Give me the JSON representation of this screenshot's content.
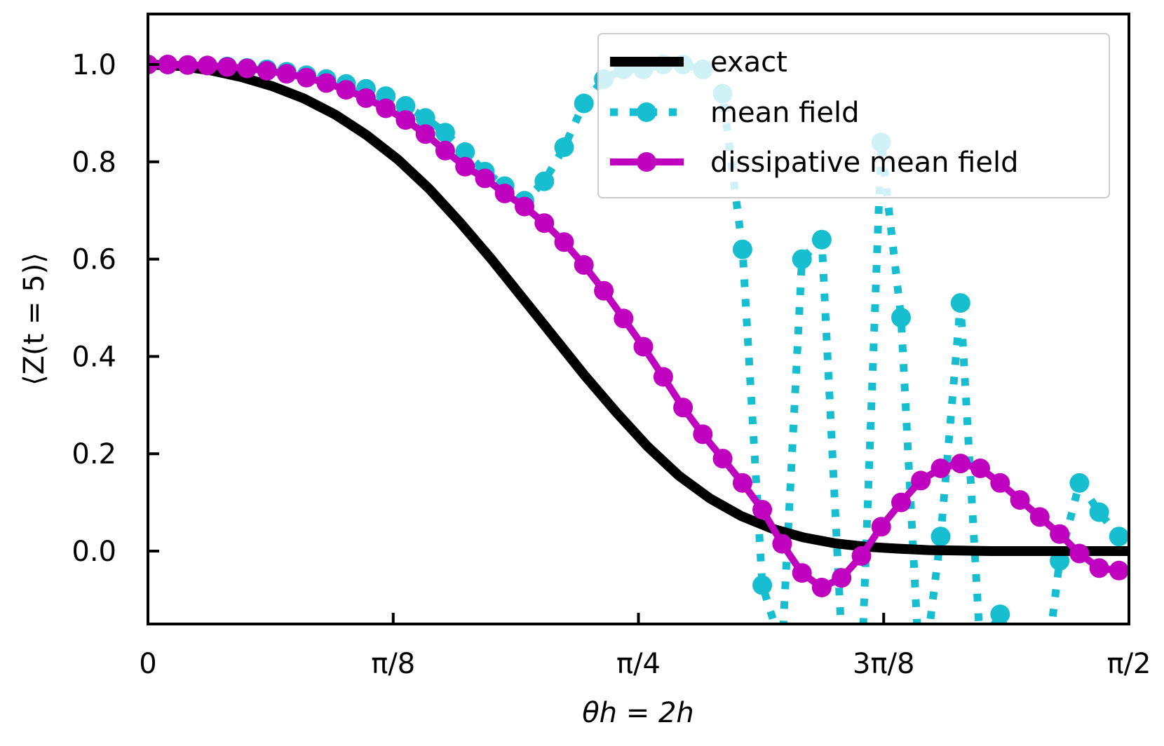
{
  "chart_data": {
    "type": "line",
    "xlabel": "θh = 2h",
    "ylabel": "⟨Z(t = 5)⟩",
    "xlim": [
      0,
      1.5708
    ],
    "ylim": [
      -0.15,
      1.1
    ],
    "x_ticks": [
      {
        "value": 0,
        "label": "0"
      },
      {
        "value": 0.3927,
        "label": "π/8"
      },
      {
        "value": 0.7854,
        "label": "π/4"
      },
      {
        "value": 1.1781,
        "label": "3π/8"
      },
      {
        "value": 1.5708,
        "label": "π/2"
      }
    ],
    "y_ticks": [
      {
        "value": 0.0,
        "label": "0.0"
      },
      {
        "value": 0.2,
        "label": "0.2"
      },
      {
        "value": 0.4,
        "label": "0.4"
      },
      {
        "value": 0.6,
        "label": "0.6"
      },
      {
        "value": 0.8,
        "label": "0.8"
      },
      {
        "value": 1.0,
        "label": "1.0"
      }
    ],
    "legend_position": "top-right",
    "series": [
      {
        "name": "exact",
        "style": "solid",
        "marker": "none",
        "color": "#000000",
        "x": [
          0,
          0.05,
          0.1,
          0.15,
          0.2,
          0.25,
          0.3,
          0.35,
          0.4,
          0.45,
          0.5,
          0.55,
          0.6,
          0.65,
          0.7,
          0.75,
          0.8,
          0.85,
          0.9,
          0.95,
          1.0,
          1.05,
          1.1,
          1.15,
          1.2,
          1.25,
          1.3,
          1.35,
          1.4,
          1.45,
          1.5,
          1.5708
        ],
        "values": [
          1.0,
          0.997,
          0.988,
          0.974,
          0.955,
          0.93,
          0.897,
          0.855,
          0.805,
          0.745,
          0.675,
          0.6,
          0.52,
          0.44,
          0.36,
          0.285,
          0.215,
          0.155,
          0.108,
          0.072,
          0.046,
          0.028,
          0.016,
          0.009,
          0.005,
          0.002,
          0.001,
          0.0,
          0.0,
          0.0,
          0.0,
          0.0
        ]
      },
      {
        "name": "mean field",
        "style": "dotted",
        "marker": "circle",
        "color": "#17becf",
        "x": [
          0,
          0.0317,
          0.0635,
          0.0952,
          0.1269,
          0.1587,
          0.1904,
          0.2221,
          0.2539,
          0.2856,
          0.3173,
          0.3491,
          0.3808,
          0.4125,
          0.4443,
          0.476,
          0.5077,
          0.5395,
          0.5712,
          0.6029,
          0.6347,
          0.6664,
          0.6981,
          0.7299,
          0.7616,
          0.7933,
          0.8251,
          0.8568,
          0.8885,
          0.9203,
          0.952,
          0.9837,
          1.0155,
          1.0472,
          1.0789,
          1.1107,
          1.1424,
          1.1741,
          1.2059,
          1.2376,
          1.2693,
          1.3011,
          1.3328,
          1.3645,
          1.3963,
          1.428,
          1.4597,
          1.4915,
          1.5232,
          1.5549
        ],
        "values": [
          1.0,
          1.0,
          0.999,
          0.998,
          0.996,
          0.993,
          0.99,
          0.985,
          0.978,
          0.97,
          0.96,
          0.95,
          0.935,
          0.915,
          0.89,
          0.86,
          0.82,
          0.78,
          0.75,
          0.72,
          0.76,
          0.83,
          0.92,
          0.97,
          0.99,
          0.99,
          1.0,
          1.0,
          0.99,
          0.94,
          0.62,
          -0.07,
          -0.2,
          0.6,
          0.64,
          -0.18,
          -0.25,
          0.84,
          0.48,
          -0.3,
          0.03,
          0.51,
          -0.2,
          -0.13,
          -0.25,
          -0.35,
          -0.02,
          0.14,
          0.08,
          0.03
        ]
      },
      {
        "name": "dissipative mean field",
        "style": "solid",
        "marker": "circle",
        "color": "#bf00bf",
        "x": [
          0,
          0.0317,
          0.0635,
          0.0952,
          0.1269,
          0.1587,
          0.1904,
          0.2221,
          0.2539,
          0.2856,
          0.3173,
          0.3491,
          0.3808,
          0.4125,
          0.4443,
          0.476,
          0.5077,
          0.5395,
          0.5712,
          0.6029,
          0.6347,
          0.6664,
          0.6981,
          0.7299,
          0.7616,
          0.7933,
          0.8251,
          0.8568,
          0.8885,
          0.9203,
          0.952,
          0.9837,
          1.0155,
          1.0472,
          1.0789,
          1.1107,
          1.1424,
          1.1741,
          1.2059,
          1.2376,
          1.2693,
          1.3011,
          1.3328,
          1.3645,
          1.3963,
          1.428,
          1.4597,
          1.4915,
          1.5232,
          1.5549
        ],
        "values": [
          1.0,
          1.0,
          0.999,
          0.998,
          0.995,
          0.992,
          0.987,
          0.981,
          0.973,
          0.962,
          0.948,
          0.931,
          0.91,
          0.886,
          0.857,
          0.823,
          0.79,
          0.766,
          0.735,
          0.708,
          0.674,
          0.635,
          0.588,
          0.535,
          0.478,
          0.42,
          0.358,
          0.295,
          0.24,
          0.19,
          0.14,
          0.085,
          0.015,
          -0.045,
          -0.075,
          -0.055,
          -0.01,
          0.05,
          0.1,
          0.145,
          0.17,
          0.18,
          0.17,
          0.14,
          0.105,
          0.07,
          0.035,
          -0.005,
          -0.035,
          -0.04
        ]
      }
    ]
  }
}
